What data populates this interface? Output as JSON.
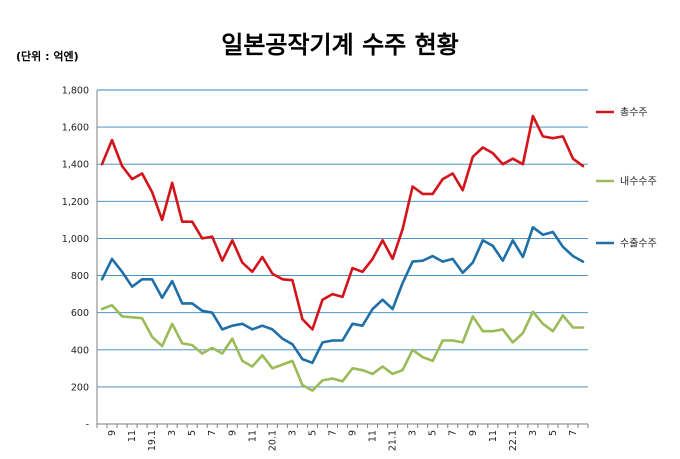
{
  "chart_data": {
    "type": "line",
    "title": "일본공작기계 수주 현황",
    "unit_label": "(단위 : 억엔)",
    "xlabel": "",
    "ylabel": "",
    "ylim": [
      0,
      1800
    ],
    "yticks": [
      0,
      200,
      400,
      600,
      800,
      1000,
      1200,
      1400,
      1600,
      1800
    ],
    "ytick_labels": [
      "-",
      "200",
      "400",
      "600",
      "800",
      "1,000",
      "1,200",
      "1,400",
      "1,600",
      "1,800"
    ],
    "grid": true,
    "legend_position": "right",
    "x": [
      "8",
      "9",
      "10",
      "11",
      "12",
      "19.1",
      "2",
      "3",
      "4",
      "5",
      "6",
      "7",
      "8",
      "9",
      "10",
      "11",
      "12",
      "20.1",
      "2",
      "3",
      "4",
      "5",
      "6",
      "7",
      "8",
      "9",
      "10",
      "11",
      "12",
      "21.1",
      "2",
      "3",
      "4",
      "5",
      "6",
      "7",
      "8",
      "9",
      "10",
      "11",
      "12",
      "22.1",
      "2",
      "3",
      "4",
      "5",
      "6",
      "7",
      "8"
    ],
    "x_tick_labels": [
      "",
      "9",
      "",
      "11",
      "",
      "19.1",
      "",
      "3",
      "",
      "5",
      "",
      "7",
      "",
      "9",
      "",
      "11",
      "",
      "20.1",
      "",
      "3",
      "",
      "5",
      "",
      "7",
      "",
      "9",
      "",
      "11",
      "",
      "21.1",
      "",
      "3",
      "",
      "5",
      "",
      "7",
      "",
      "9",
      "",
      "11",
      "",
      "22.1",
      "",
      "3",
      "",
      "5",
      "",
      "7",
      ""
    ],
    "series": [
      {
        "name": "총수주",
        "color": "#d4141b",
        "values": [
          1400,
          1530,
          1390,
          1320,
          1350,
          1250,
          1100,
          1300,
          1090,
          1090,
          1000,
          1010,
          880,
          990,
          870,
          820,
          900,
          810,
          780,
          775,
          565,
          510,
          670,
          700,
          685,
          840,
          820,
          890,
          990,
          890,
          1050,
          1280,
          1240,
          1240,
          1320,
          1350,
          1260,
          1440,
          1490,
          1460,
          1400,
          1430,
          1400,
          1660,
          1550,
          1540,
          1550,
          1430,
          1390
        ]
      },
      {
        "name": "내수수주",
        "color": "#9bbb59",
        "values": [
          620,
          640,
          580,
          575,
          570,
          470,
          420,
          540,
          435,
          425,
          380,
          410,
          380,
          460,
          340,
          310,
          370,
          300,
          320,
          340,
          210,
          180,
          235,
          245,
          230,
          300,
          290,
          270,
          310,
          270,
          290,
          400,
          360,
          340,
          450,
          450,
          440,
          580,
          500,
          500,
          510,
          440,
          490,
          605,
          540,
          500,
          585,
          520,
          520
        ]
      },
      {
        "name": "수출수주",
        "color": "#1f6fa8",
        "values": [
          780,
          890,
          820,
          740,
          780,
          780,
          680,
          770,
          650,
          650,
          610,
          600,
          510,
          530,
          540,
          510,
          530,
          510,
          460,
          430,
          350,
          330,
          440,
          450,
          450,
          540,
          530,
          620,
          670,
          620,
          760,
          875,
          880,
          905,
          875,
          890,
          815,
          870,
          990,
          960,
          880,
          990,
          900,
          1060,
          1020,
          1035,
          955,
          905,
          875
        ]
      }
    ]
  }
}
